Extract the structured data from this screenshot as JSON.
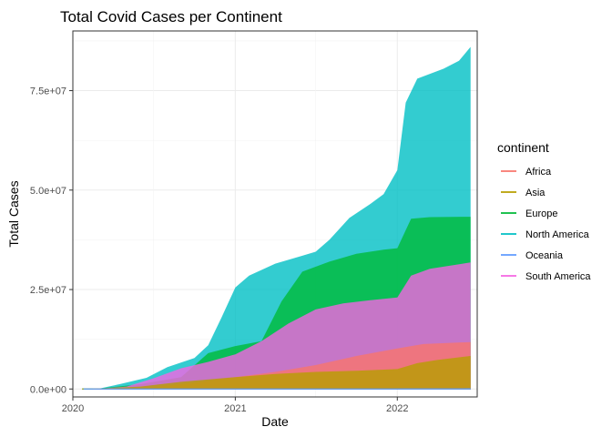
{
  "chart_data": {
    "type": "area",
    "title": "Total Covid Cases per Continent",
    "xlabel": "Date",
    "ylabel": "Total Cases",
    "x_ticks": [
      "2020",
      "2021",
      "2022"
    ],
    "x_range": [
      "2020-01-01",
      "2022-06-30"
    ],
    "y_ticks": [
      "0.0e+00",
      "2.5e+07",
      "5.0e+07",
      "7.5e+07"
    ],
    "ylim": [
      -2000000,
      90000000
    ],
    "grid": true,
    "legend_position": "right",
    "legend_title": "continent",
    "series": [
      {
        "name": "Africa",
        "color": "#F8766D",
        "points": [
          [
            "2020-02-15",
            0
          ],
          [
            "2020-04-01",
            0
          ],
          [
            "2020-07-01",
            500000
          ],
          [
            "2020-10-01",
            1600000
          ],
          [
            "2021-01-01",
            3000000
          ],
          [
            "2021-04-01",
            4300000
          ],
          [
            "2021-07-01",
            6000000
          ],
          [
            "2021-10-01",
            8300000
          ],
          [
            "2022-01-01",
            10200000
          ],
          [
            "2022-03-01",
            11300000
          ],
          [
            "2022-06-15",
            11800000
          ]
        ]
      },
      {
        "name": "Asia",
        "color": "#B79F00",
        "points": [
          [
            "2020-01-22",
            0
          ],
          [
            "2020-03-01",
            100000
          ],
          [
            "2020-06-01",
            600000
          ],
          [
            "2020-09-01",
            1800000
          ],
          [
            "2021-01-01",
            3000000
          ],
          [
            "2021-04-01",
            3800000
          ],
          [
            "2021-07-01",
            4300000
          ],
          [
            "2021-10-01",
            4600000
          ],
          [
            "2022-01-01",
            5000000
          ],
          [
            "2022-02-15",
            6500000
          ],
          [
            "2022-04-01",
            7300000
          ],
          [
            "2022-06-15",
            8300000
          ]
        ]
      },
      {
        "name": "Europe",
        "color": "#00BA38",
        "points": [
          [
            "2020-01-25",
            0
          ],
          [
            "2020-03-01",
            100000
          ],
          [
            "2020-06-01",
            1200000
          ],
          [
            "2020-09-01",
            3000000
          ],
          [
            "2020-11-01",
            9000000
          ],
          [
            "2021-01-01",
            10800000
          ],
          [
            "2021-03-01",
            12000000
          ],
          [
            "2021-04-15",
            22000000
          ],
          [
            "2021-06-01",
            29500000
          ],
          [
            "2021-08-01",
            32000000
          ],
          [
            "2021-10-01",
            34000000
          ],
          [
            "2021-12-01",
            35000000
          ],
          [
            "2022-01-01",
            35400000
          ],
          [
            "2022-02-01",
            42800000
          ],
          [
            "2022-03-15",
            43200000
          ],
          [
            "2022-06-15",
            43300000
          ]
        ]
      },
      {
        "name": "North America",
        "color": "#00BFC4",
        "points": [
          [
            "2020-01-22",
            0
          ],
          [
            "2020-03-01",
            100000
          ],
          [
            "2020-04-15",
            1200000
          ],
          [
            "2020-06-15",
            2800000
          ],
          [
            "2020-08-01",
            5500000
          ],
          [
            "2020-10-01",
            7800000
          ],
          [
            "2020-11-01",
            11000000
          ],
          [
            "2020-12-01",
            18000000
          ],
          [
            "2021-01-01",
            25500000
          ],
          [
            "2021-02-01",
            28500000
          ],
          [
            "2021-04-01",
            31500000
          ],
          [
            "2021-06-01",
            33500000
          ],
          [
            "2021-07-01",
            34500000
          ],
          [
            "2021-08-01",
            37500000
          ],
          [
            "2021-09-15",
            43000000
          ],
          [
            "2021-11-01",
            46500000
          ],
          [
            "2021-12-01",
            49000000
          ],
          [
            "2022-01-01",
            55000000
          ],
          [
            "2022-01-20",
            72000000
          ],
          [
            "2022-02-15",
            78000000
          ],
          [
            "2022-04-15",
            80500000
          ],
          [
            "2022-05-20",
            82500000
          ],
          [
            "2022-06-15",
            86000000
          ]
        ]
      },
      {
        "name": "Oceania",
        "color": "#619CFF",
        "points": [
          [
            "2020-01-25",
            0
          ],
          [
            "2021-12-01",
            0
          ],
          [
            "2022-01-15",
            100000
          ],
          [
            "2022-06-15",
            200000
          ]
        ]
      },
      {
        "name": "South America",
        "color": "#F564E3",
        "points": [
          [
            "2020-02-26",
            0
          ],
          [
            "2020-05-01",
            600000
          ],
          [
            "2020-07-01",
            2700000
          ],
          [
            "2020-09-01",
            5200000
          ],
          [
            "2020-11-01",
            6800000
          ],
          [
            "2021-01-01",
            8700000
          ],
          [
            "2021-03-01",
            12000000
          ],
          [
            "2021-05-01",
            16500000
          ],
          [
            "2021-07-01",
            20000000
          ],
          [
            "2021-09-01",
            21500000
          ],
          [
            "2021-11-01",
            22300000
          ],
          [
            "2022-01-01",
            23000000
          ],
          [
            "2022-02-01",
            28500000
          ],
          [
            "2022-03-15",
            30200000
          ],
          [
            "2022-06-15",
            31800000
          ]
        ]
      }
    ]
  }
}
